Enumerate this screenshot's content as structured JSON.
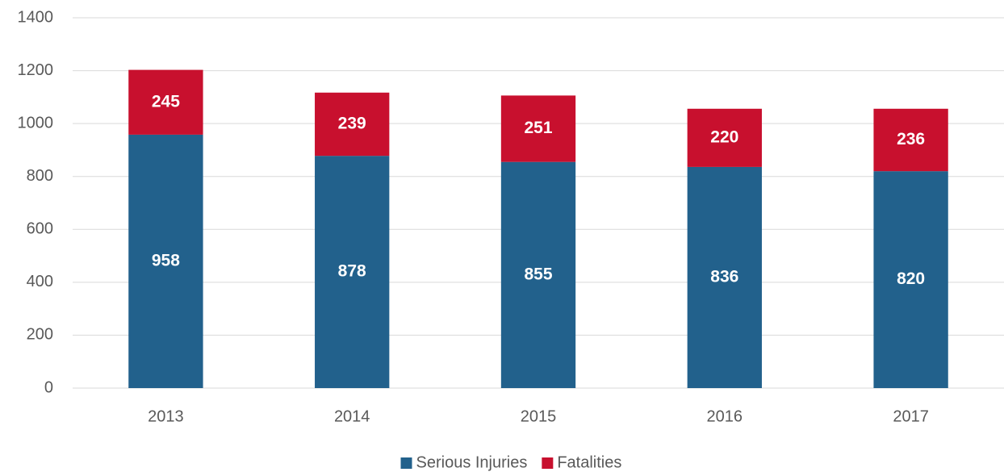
{
  "chart_data": {
    "type": "stacked_bar",
    "categories": [
      "2013",
      "2014",
      "2015",
      "2016",
      "2017"
    ],
    "series": [
      {
        "name": "Serious Injuries",
        "color": "#22618c",
        "values": [
          958,
          878,
          855,
          836,
          820
        ]
      },
      {
        "name": "Fatalities",
        "color": "#c8102e",
        "values": [
          245,
          239,
          251,
          220,
          236
        ]
      }
    ],
    "ylim": [
      0,
      1400
    ],
    "yticks": [
      0,
      200,
      400,
      600,
      800,
      1000,
      1200,
      1400
    ],
    "grid": true,
    "legend": "bottom"
  }
}
